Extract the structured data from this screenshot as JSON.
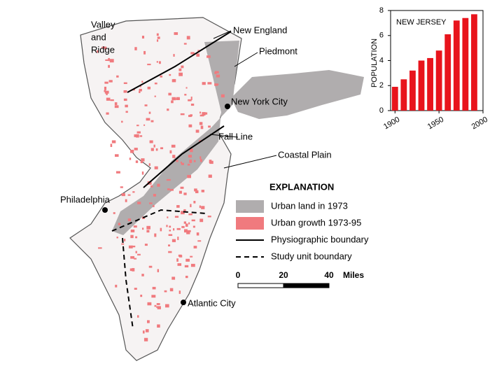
{
  "map": {
    "labels": {
      "valley_and_ridge": [
        "Valley",
        "and",
        "Ridge"
      ],
      "new_england": "New England",
      "piedmont": "Piedmont",
      "new_york_city": "New York City",
      "fall_line": "Fall Line",
      "coastal_plain": "Coastal Plain",
      "philadelphia": "Philadelphia",
      "atlantic_city": "Atlantic City"
    }
  },
  "legend": {
    "title": "EXPLANATION",
    "items": [
      "Urban land in 1973",
      "Urban growth 1973-95",
      "Physiographic boundary",
      "Study unit boundary"
    ]
  },
  "scale": {
    "ticks": [
      "0",
      "20",
      "40"
    ],
    "unit": "Miles"
  },
  "chart_data": {
    "type": "bar",
    "title": "NEW JERSEY",
    "y_label": "POPULATION",
    "x": [
      1900,
      1910,
      1920,
      1930,
      1940,
      1950,
      1960,
      1970,
      1980,
      1990
    ],
    "values": [
      1.9,
      2.5,
      3.2,
      4.0,
      4.2,
      4.8,
      6.1,
      7.2,
      7.4,
      7.7
    ],
    "color": "#e8141c",
    "xlim": [
      1895,
      2000
    ],
    "xticks": [
      1900,
      1950,
      2000
    ],
    "ylim": [
      0,
      8
    ],
    "yticks": [
      0,
      2,
      4,
      6,
      8
    ]
  }
}
